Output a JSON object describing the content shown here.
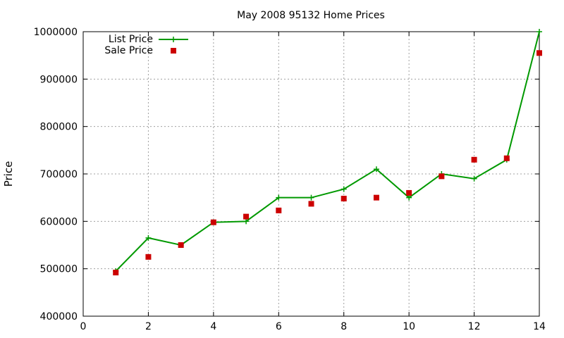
{
  "chart_data": {
    "type": "line",
    "title": "May 2008 95132 Home Prices",
    "xlabel": "",
    "ylabel": "Price",
    "xlim": [
      0,
      14
    ],
    "ylim": [
      400000,
      1000000
    ],
    "xticks": [
      "0",
      "2",
      "4",
      "6",
      "8",
      "10",
      "12",
      "14"
    ],
    "yticks": [
      "400000",
      "500000",
      "600000",
      "700000",
      "800000",
      "900000",
      "1000000"
    ],
    "grid": true,
    "legend_position": "top-left",
    "series": [
      {
        "name": "List Price",
        "style": "lines+points",
        "marker": "plus",
        "color": "#009900",
        "x": [
          1,
          2,
          3,
          4,
          5,
          6,
          7,
          8,
          9,
          10,
          11,
          12,
          13,
          14
        ],
        "y": [
          495000,
          565000,
          550000,
          598000,
          600000,
          650000,
          650000,
          668000,
          710000,
          650000,
          700000,
          690000,
          730000,
          1000000
        ]
      },
      {
        "name": "Sale Price",
        "style": "points",
        "marker": "square",
        "color": "#cc0000",
        "x": [
          1,
          2,
          3,
          4,
          5,
          6,
          7,
          8,
          9,
          10,
          11,
          12,
          13,
          14
        ],
        "y": [
          492000,
          525000,
          550000,
          598000,
          610000,
          623000,
          637000,
          648000,
          650000,
          660000,
          695000,
          730000,
          733000,
          955000
        ]
      }
    ]
  }
}
